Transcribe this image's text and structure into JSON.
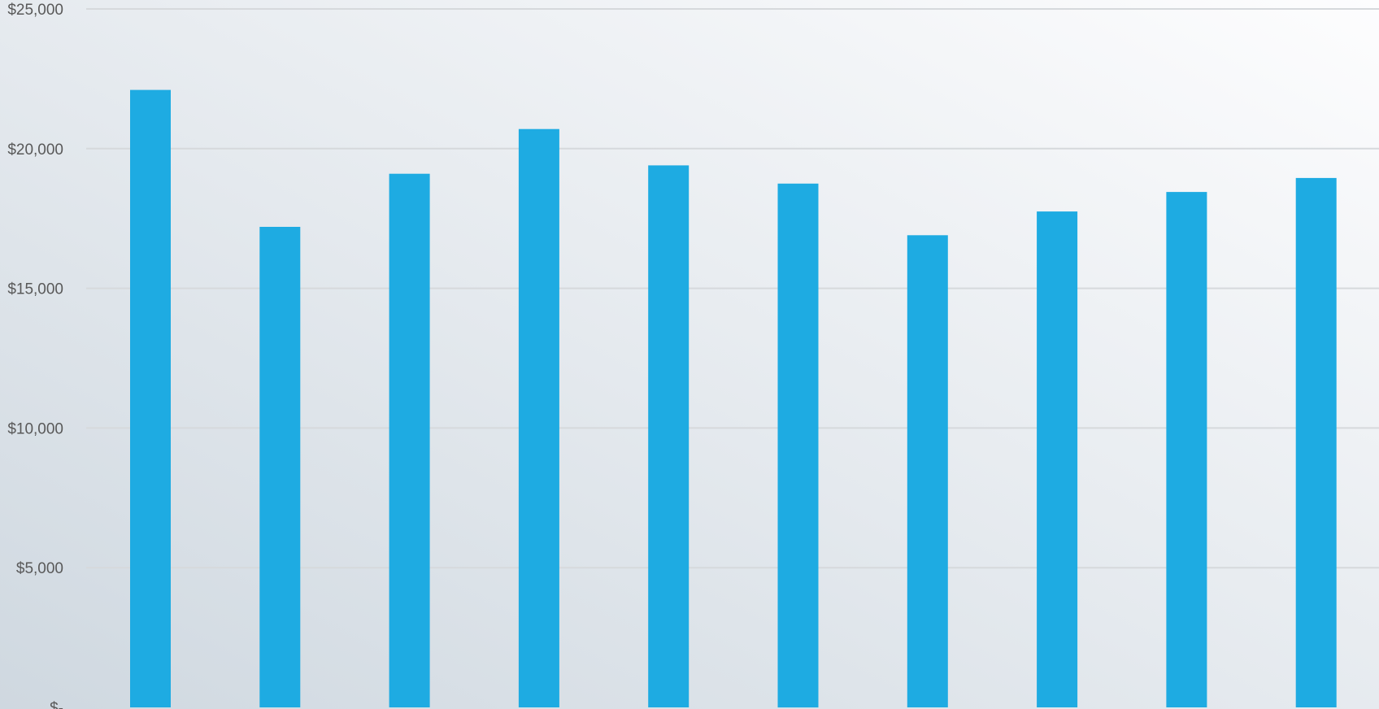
{
  "chart_data": {
    "type": "bar",
    "title": "",
    "xlabel": "",
    "ylabel": "",
    "categories": [
      "",
      "",
      "",
      "",
      "",
      "",
      "",
      "",
      "",
      ""
    ],
    "values": [
      22100,
      17200,
      19100,
      20700,
      19400,
      18750,
      16900,
      17750,
      18450,
      18950
    ],
    "ylim": [
      0,
      25000
    ],
    "y_ticks": [
      0,
      5000,
      10000,
      15000,
      20000,
      25000
    ],
    "y_tick_labels": [
      "$-",
      "$5,000",
      "$10,000",
      "$15,000",
      "$20,000",
      "$25,000"
    ],
    "grid": true,
    "legend": "none",
    "colors": {
      "bar": "#1eabe2",
      "gridline": "#d6d9dc",
      "background_top": "#fdfdfe",
      "background_bottom": "#cfd8e0"
    }
  }
}
